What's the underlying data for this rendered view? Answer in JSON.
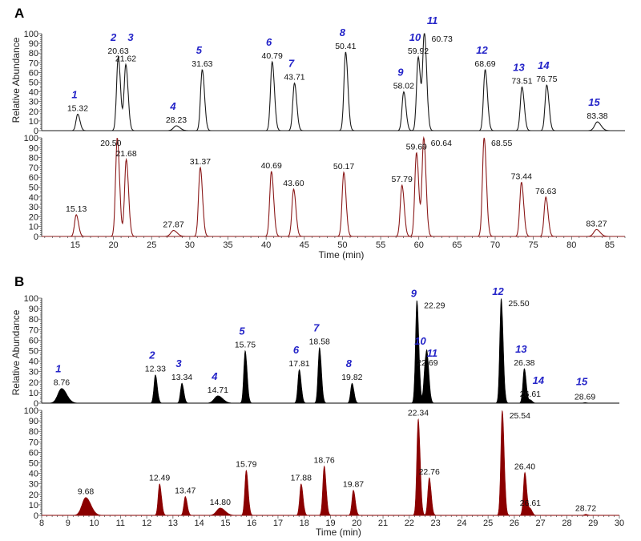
{
  "chart_data": [
    {
      "panel_label": "A",
      "type": "line",
      "xlabel": "Time (min)",
      "ylabel": "Relative Abundance",
      "xlim": [
        10.6,
        87
      ],
      "ylim": [
        0,
        100
      ],
      "xticks": [
        15,
        20,
        25,
        30,
        35,
        40,
        45,
        50,
        55,
        60,
        65,
        70,
        75,
        80,
        85
      ],
      "yticks": [
        0,
        10,
        20,
        30,
        40,
        50,
        60,
        70,
        80,
        90,
        100
      ],
      "fill": false,
      "traces": [
        {
          "color": "#1a1a1a",
          "peaks": [
            {
              "rt": 15.32,
              "label": "15.32",
              "y": 17,
              "compound": "1"
            },
            {
              "rt": 20.63,
              "label": "20.63",
              "y": 76,
              "compound": "2"
            },
            {
              "rt": 21.62,
              "label": "21.62",
              "y": 68,
              "compound": "3"
            },
            {
              "rt": 28.23,
              "label": "28.23",
              "y": 5,
              "compound": "4"
            },
            {
              "rt": 31.63,
              "label": "31.63",
              "y": 63,
              "compound": "5"
            },
            {
              "rt": 40.79,
              "label": "40.79",
              "y": 71,
              "compound": "6"
            },
            {
              "rt": 43.71,
              "label": "43.71",
              "y": 49,
              "compound": "7"
            },
            {
              "rt": 50.41,
              "label": "50.41",
              "y": 81,
              "compound": "8"
            },
            {
              "rt": 58.02,
              "label": "58.02",
              "y": 40,
              "compound": "9"
            },
            {
              "rt": 59.92,
              "label": "59.92",
              "y": 76,
              "compound": "10"
            },
            {
              "rt": 60.73,
              "label": "60.73",
              "y": 100,
              "compound": "11"
            },
            {
              "rt": 68.69,
              "label": "68.69",
              "y": 63,
              "compound": "12"
            },
            {
              "rt": 73.51,
              "label": "73.51",
              "y": 45,
              "compound": "13"
            },
            {
              "rt": 76.75,
              "label": "76.75",
              "y": 47,
              "compound": "14"
            },
            {
              "rt": 83.38,
              "label": "83.38",
              "y": 9,
              "compound": "15"
            }
          ]
        },
        {
          "color": "#8b1a1a",
          "peaks": [
            {
              "rt": 15.13,
              "label": "15.13",
              "y": 22
            },
            {
              "rt": 20.5,
              "label": "20.50",
              "y": 100
            },
            {
              "rt": 21.68,
              "label": "21.68",
              "y": 78
            },
            {
              "rt": 27.87,
              "label": "27.87",
              "y": 6
            },
            {
              "rt": 31.37,
              "label": "31.37",
              "y": 70
            },
            {
              "rt": 40.69,
              "label": "40.69",
              "y": 66
            },
            {
              "rt": 43.6,
              "label": "43.60",
              "y": 48
            },
            {
              "rt": 50.17,
              "label": "50.17",
              "y": 65
            },
            {
              "rt": 57.79,
              "label": "57.79",
              "y": 52
            },
            {
              "rt": 59.69,
              "label": "59.69",
              "y": 85
            },
            {
              "rt": 60.64,
              "label": "60.64",
              "y": 100
            },
            {
              "rt": 68.55,
              "label": "68.55",
              "y": 100
            },
            {
              "rt": 73.44,
              "label": "73.44",
              "y": 55
            },
            {
              "rt": 76.63,
              "label": "76.63",
              "y": 40
            },
            {
              "rt": 83.27,
              "label": "83.27",
              "y": 7
            }
          ]
        }
      ]
    },
    {
      "panel_label": "B",
      "type": "area",
      "xlabel": "Time (min)",
      "ylabel": "Relative Abundance",
      "xlim": [
        8,
        30
      ],
      "ylim": [
        0,
        100
      ],
      "xticks": [
        8,
        9,
        10,
        11,
        12,
        13,
        14,
        15,
        16,
        17,
        18,
        19,
        20,
        21,
        22,
        23,
        24,
        25,
        26,
        27,
        28,
        29,
        30
      ],
      "yticks": [
        0,
        10,
        20,
        30,
        40,
        50,
        60,
        70,
        80,
        90,
        100
      ],
      "fill": true,
      "traces": [
        {
          "color": "#000000",
          "peaks": [
            {
              "rt": 8.76,
              "label": "8.76",
              "y": 14,
              "compound": "1"
            },
            {
              "rt": 12.33,
              "label": "12.33",
              "y": 27,
              "compound": "2"
            },
            {
              "rt": 13.34,
              "label": "13.34",
              "y": 19,
              "compound": "3"
            },
            {
              "rt": 14.71,
              "label": "14.71",
              "y": 7,
              "compound": "4"
            },
            {
              "rt": 15.75,
              "label": "15.75",
              "y": 50,
              "compound": "5"
            },
            {
              "rt": 17.81,
              "label": "17.81",
              "y": 32,
              "compound": "6"
            },
            {
              "rt": 18.58,
              "label": "18.58",
              "y": 53,
              "compound": "7"
            },
            {
              "rt": 19.82,
              "label": "19.82",
              "y": 19,
              "compound": "8"
            },
            {
              "rt": 22.29,
              "label": "22.29",
              "y": 98,
              "compound": "9"
            },
            {
              "rt": 22.6,
              "label": "",
              "y": 31,
              "compound": "10"
            },
            {
              "rt": 22.69,
              "label": "22.69",
              "y": 33,
              "compound": "11"
            },
            {
              "rt": 25.5,
              "label": "25.50",
              "y": 100,
              "compound": "12"
            },
            {
              "rt": 26.38,
              "label": "26.38",
              "y": 33,
              "compound": "13"
            },
            {
              "rt": 26.61,
              "label": "26.61",
              "y": 3,
              "compound": "14"
            },
            {
              "rt": 28.69,
              "label": "28.69",
              "y": 0.5,
              "compound": "15"
            }
          ]
        },
        {
          "color": "#8b0000",
          "peaks": [
            {
              "rt": 9.68,
              "label": "9.68",
              "y": 17
            },
            {
              "rt": 12.49,
              "label": "12.49",
              "y": 30
            },
            {
              "rt": 13.47,
              "label": "13.47",
              "y": 18
            },
            {
              "rt": 14.8,
              "label": "14.80",
              "y": 7
            },
            {
              "rt": 15.79,
              "label": "15.79",
              "y": 43
            },
            {
              "rt": 17.88,
              "label": "17.88",
              "y": 30
            },
            {
              "rt": 18.76,
              "label": "18.76",
              "y": 47
            },
            {
              "rt": 19.87,
              "label": "19.87",
              "y": 24
            },
            {
              "rt": 22.34,
              "label": "22.34",
              "y": 92
            },
            {
              "rt": 22.76,
              "label": "22.76",
              "y": 36
            },
            {
              "rt": 25.54,
              "label": "25.54",
              "y": 100
            },
            {
              "rt": 26.4,
              "label": "26.40",
              "y": 41
            },
            {
              "rt": 26.61,
              "label": "26.61",
              "y": 6
            },
            {
              "rt": 28.72,
              "label": "28.72",
              "y": 1
            }
          ]
        }
      ]
    }
  ]
}
